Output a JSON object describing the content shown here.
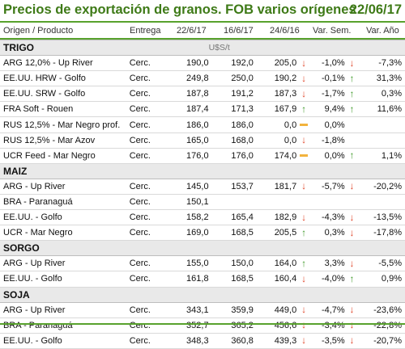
{
  "header": {
    "title": "Precios de exportación de granos. FOB varios orígenes",
    "date": "22/06/17"
  },
  "columns": [
    "Origen / Producto",
    "Entrega",
    "22/6/17",
    "16/6/17",
    "24/6/16",
    "Var. Sem.",
    "Var. Año"
  ],
  "unit": "U$S/t",
  "colors": {
    "accent": "#3e7a17",
    "rule": "#58a22d",
    "up": "#3f9a2a",
    "down": "#e0462a",
    "neutral": "#f2b33d"
  },
  "sections": [
    {
      "name": "TRIGO",
      "rows": [
        {
          "origin": "ARG 12,0% - Up River",
          "delivery": "Cerc.",
          "v1": "190,0",
          "v2": "192,0",
          "v3": "205,0",
          "icon_sem": "arrow-down-icon",
          "var_sem": "-1,0%",
          "icon_year": "arrow-down-icon",
          "var_year": "-7,3%"
        },
        {
          "origin": "EE.UU. HRW - Golfo",
          "delivery": "Cerc.",
          "v1": "249,8",
          "v2": "250,0",
          "v3": "190,2",
          "icon_sem": "arrow-down-icon",
          "var_sem": "-0,1%",
          "icon_year": "arrow-up-icon",
          "var_year": "31,3%"
        },
        {
          "origin": "EE.UU. SRW - Golfo",
          "delivery": "Cerc.",
          "v1": "187,8",
          "v2": "191,2",
          "v3": "187,3",
          "icon_sem": "arrow-down-icon",
          "var_sem": "-1,7%",
          "icon_year": "arrow-up-icon",
          "var_year": "0,3%"
        },
        {
          "origin": "FRA Soft - Rouen",
          "delivery": "Cerc.",
          "v1": "187,4",
          "v2": "171,3",
          "v3": "167,9",
          "icon_sem": "arrow-up-icon",
          "var_sem": "9,4%",
          "icon_year": "arrow-up-icon",
          "var_year": "11,6%"
        },
        {
          "origin": "RUS 12,5% - Mar Negro prof.",
          "delivery": "Cerc.",
          "v1": "186,0",
          "v2": "186,0",
          "v3": "0,0",
          "icon_sem": "neutral-dash-icon",
          "var_sem": "0,0%",
          "icon_year": "",
          "var_year": ""
        },
        {
          "origin": "RUS 12,5% - Mar Azov",
          "delivery": "Cerc.",
          "v1": "165,0",
          "v2": "168,0",
          "v3": "0,0",
          "icon_sem": "arrow-down-icon",
          "var_sem": "-1,8%",
          "icon_year": "",
          "var_year": ""
        },
        {
          "origin": "UCR Feed - Mar Negro",
          "delivery": "Cerc.",
          "v1": "176,0",
          "v2": "176,0",
          "v3": "174,0",
          "icon_sem": "neutral-dash-icon",
          "var_sem": "0,0%",
          "icon_year": "arrow-up-icon",
          "var_year": "1,1%"
        }
      ]
    },
    {
      "name": "MAIZ",
      "rows": [
        {
          "origin": "ARG - Up River",
          "delivery": "Cerc.",
          "v1": "145,0",
          "v2": "153,7",
          "v3": "181,7",
          "icon_sem": "arrow-down-icon",
          "var_sem": "-5,7%",
          "icon_year": "arrow-down-icon",
          "var_year": "-20,2%"
        },
        {
          "origin": "BRA - Paranaguá",
          "delivery": "Cerc.",
          "v1": "150,1",
          "v2": "",
          "v3": "",
          "icon_sem": "",
          "var_sem": "",
          "icon_year": "",
          "var_year": ""
        },
        {
          "origin": "EE.UU. - Golfo",
          "delivery": "Cerc.",
          "v1": "158,2",
          "v2": "165,4",
          "v3": "182,9",
          "icon_sem": "arrow-down-icon",
          "var_sem": "-4,3%",
          "icon_year": "arrow-down-icon",
          "var_year": "-13,5%"
        },
        {
          "origin": "UCR - Mar Negro",
          "delivery": "Cerc.",
          "v1": "169,0",
          "v2": "168,5",
          "v3": "205,5",
          "icon_sem": "arrow-up-icon",
          "var_sem": "0,3%",
          "icon_year": "arrow-down-icon",
          "var_year": "-17,8%"
        }
      ]
    },
    {
      "name": "SORGO",
      "rows": [
        {
          "origin": "ARG - Up River",
          "delivery": "Cerc.",
          "v1": "155,0",
          "v2": "150,0",
          "v3": "164,0",
          "icon_sem": "arrow-up-icon",
          "var_sem": "3,3%",
          "icon_year": "arrow-down-icon",
          "var_year": "-5,5%"
        },
        {
          "origin": "EE.UU. - Golfo",
          "delivery": "Cerc.",
          "v1": "161,8",
          "v2": "168,5",
          "v3": "160,4",
          "icon_sem": "arrow-down-icon",
          "var_sem": "-4,0%",
          "icon_year": "arrow-up-icon",
          "var_year": "0,9%"
        }
      ]
    },
    {
      "name": "SOJA",
      "rows": [
        {
          "origin": "ARG - Up River",
          "delivery": "Cerc.",
          "v1": "343,1",
          "v2": "359,9",
          "v3": "449,0",
          "icon_sem": "arrow-down-icon",
          "var_sem": "-4,7%",
          "icon_year": "arrow-down-icon",
          "var_year": "-23,6%"
        },
        {
          "origin": "BRA - Paranaguá",
          "delivery": "Cerc.",
          "v1": "352,7",
          "v2": "365,2",
          "v3": "456,6",
          "icon_sem": "arrow-down-icon",
          "var_sem": "-3,4%",
          "icon_year": "arrow-down-icon",
          "var_year": "-22,8%"
        },
        {
          "origin": "EE.UU. - Golfo",
          "delivery": "Cerc.",
          "v1": "348,3",
          "v2": "360,8",
          "v3": "439,3",
          "icon_sem": "arrow-down-icon",
          "var_sem": "-3,5%",
          "icon_year": "arrow-down-icon",
          "var_year": "-20,7%"
        }
      ]
    }
  ]
}
